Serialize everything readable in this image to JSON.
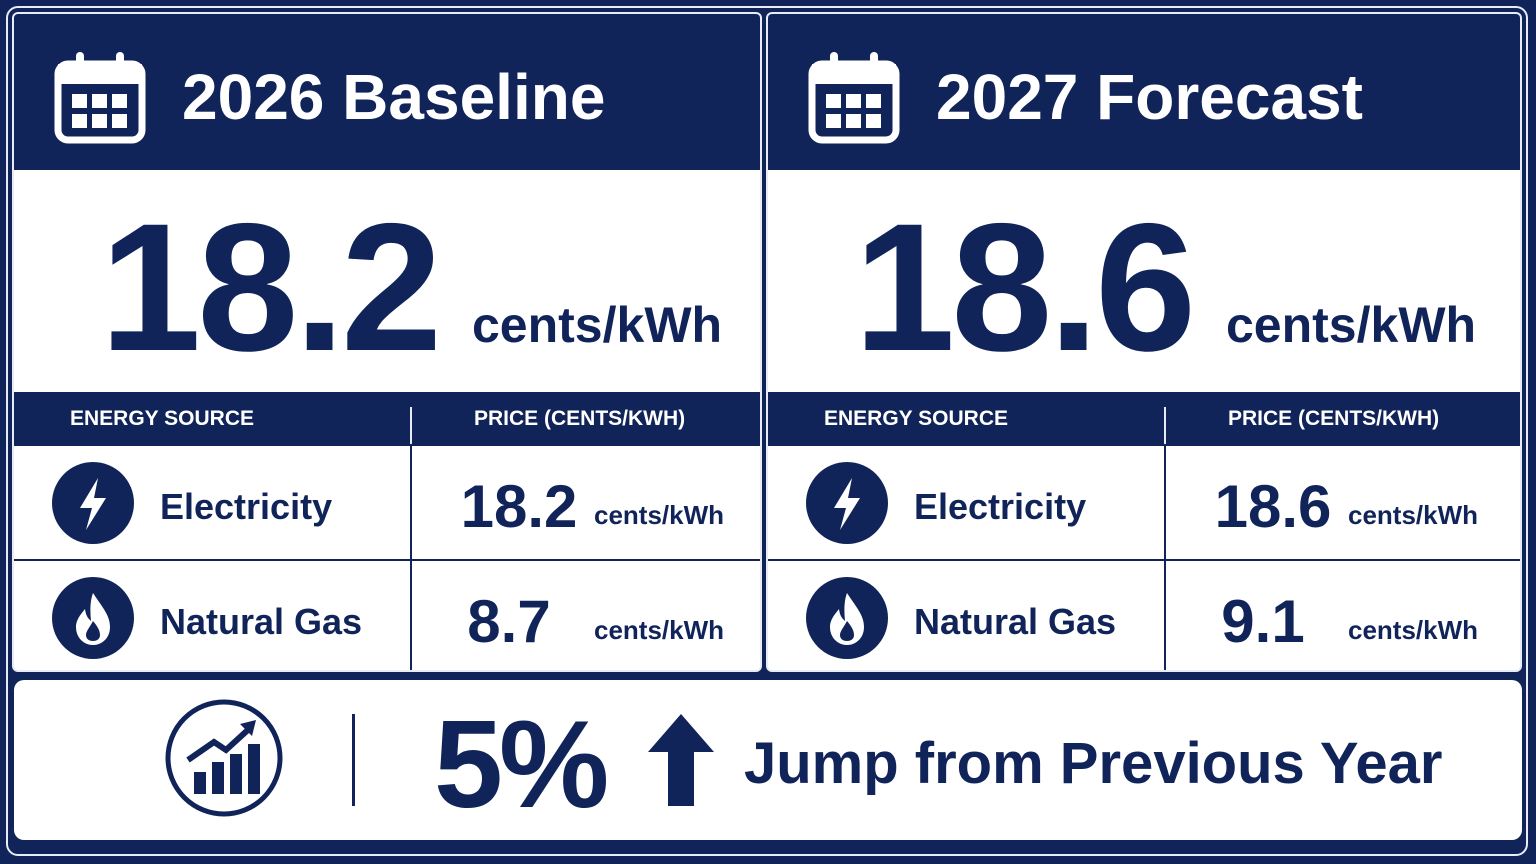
{
  "panels": [
    {
      "title": "2026 Baseline",
      "value": 18.2,
      "unit": "cents/kWh",
      "table": {
        "headers": [
          "ENERGY SOURCE",
          "PRICE (CENTS/KWH)"
        ],
        "rows": [
          {
            "source": "Electricity",
            "price": 18.2,
            "unit": "cents/kWh"
          },
          {
            "source": "Natural Gas",
            "price": 8.7,
            "unit": "cents/kWh"
          }
        ]
      }
    },
    {
      "title": "2027 Forecast",
      "value": 18.6,
      "unit": "cents/kWh",
      "table": {
        "headers": [
          "ENERGY SOURCE",
          "PRICE (CENTS/KWH)"
        ],
        "rows": [
          {
            "source": "Electricity",
            "price": 18.6,
            "unit": "cents/kWh"
          },
          {
            "source": "Natural Gas",
            "price": 9.1,
            "unit": "cents/kWh"
          }
        ]
      }
    }
  ],
  "footer": {
    "change": "5%",
    "text": "Jump from Previous Year"
  }
}
